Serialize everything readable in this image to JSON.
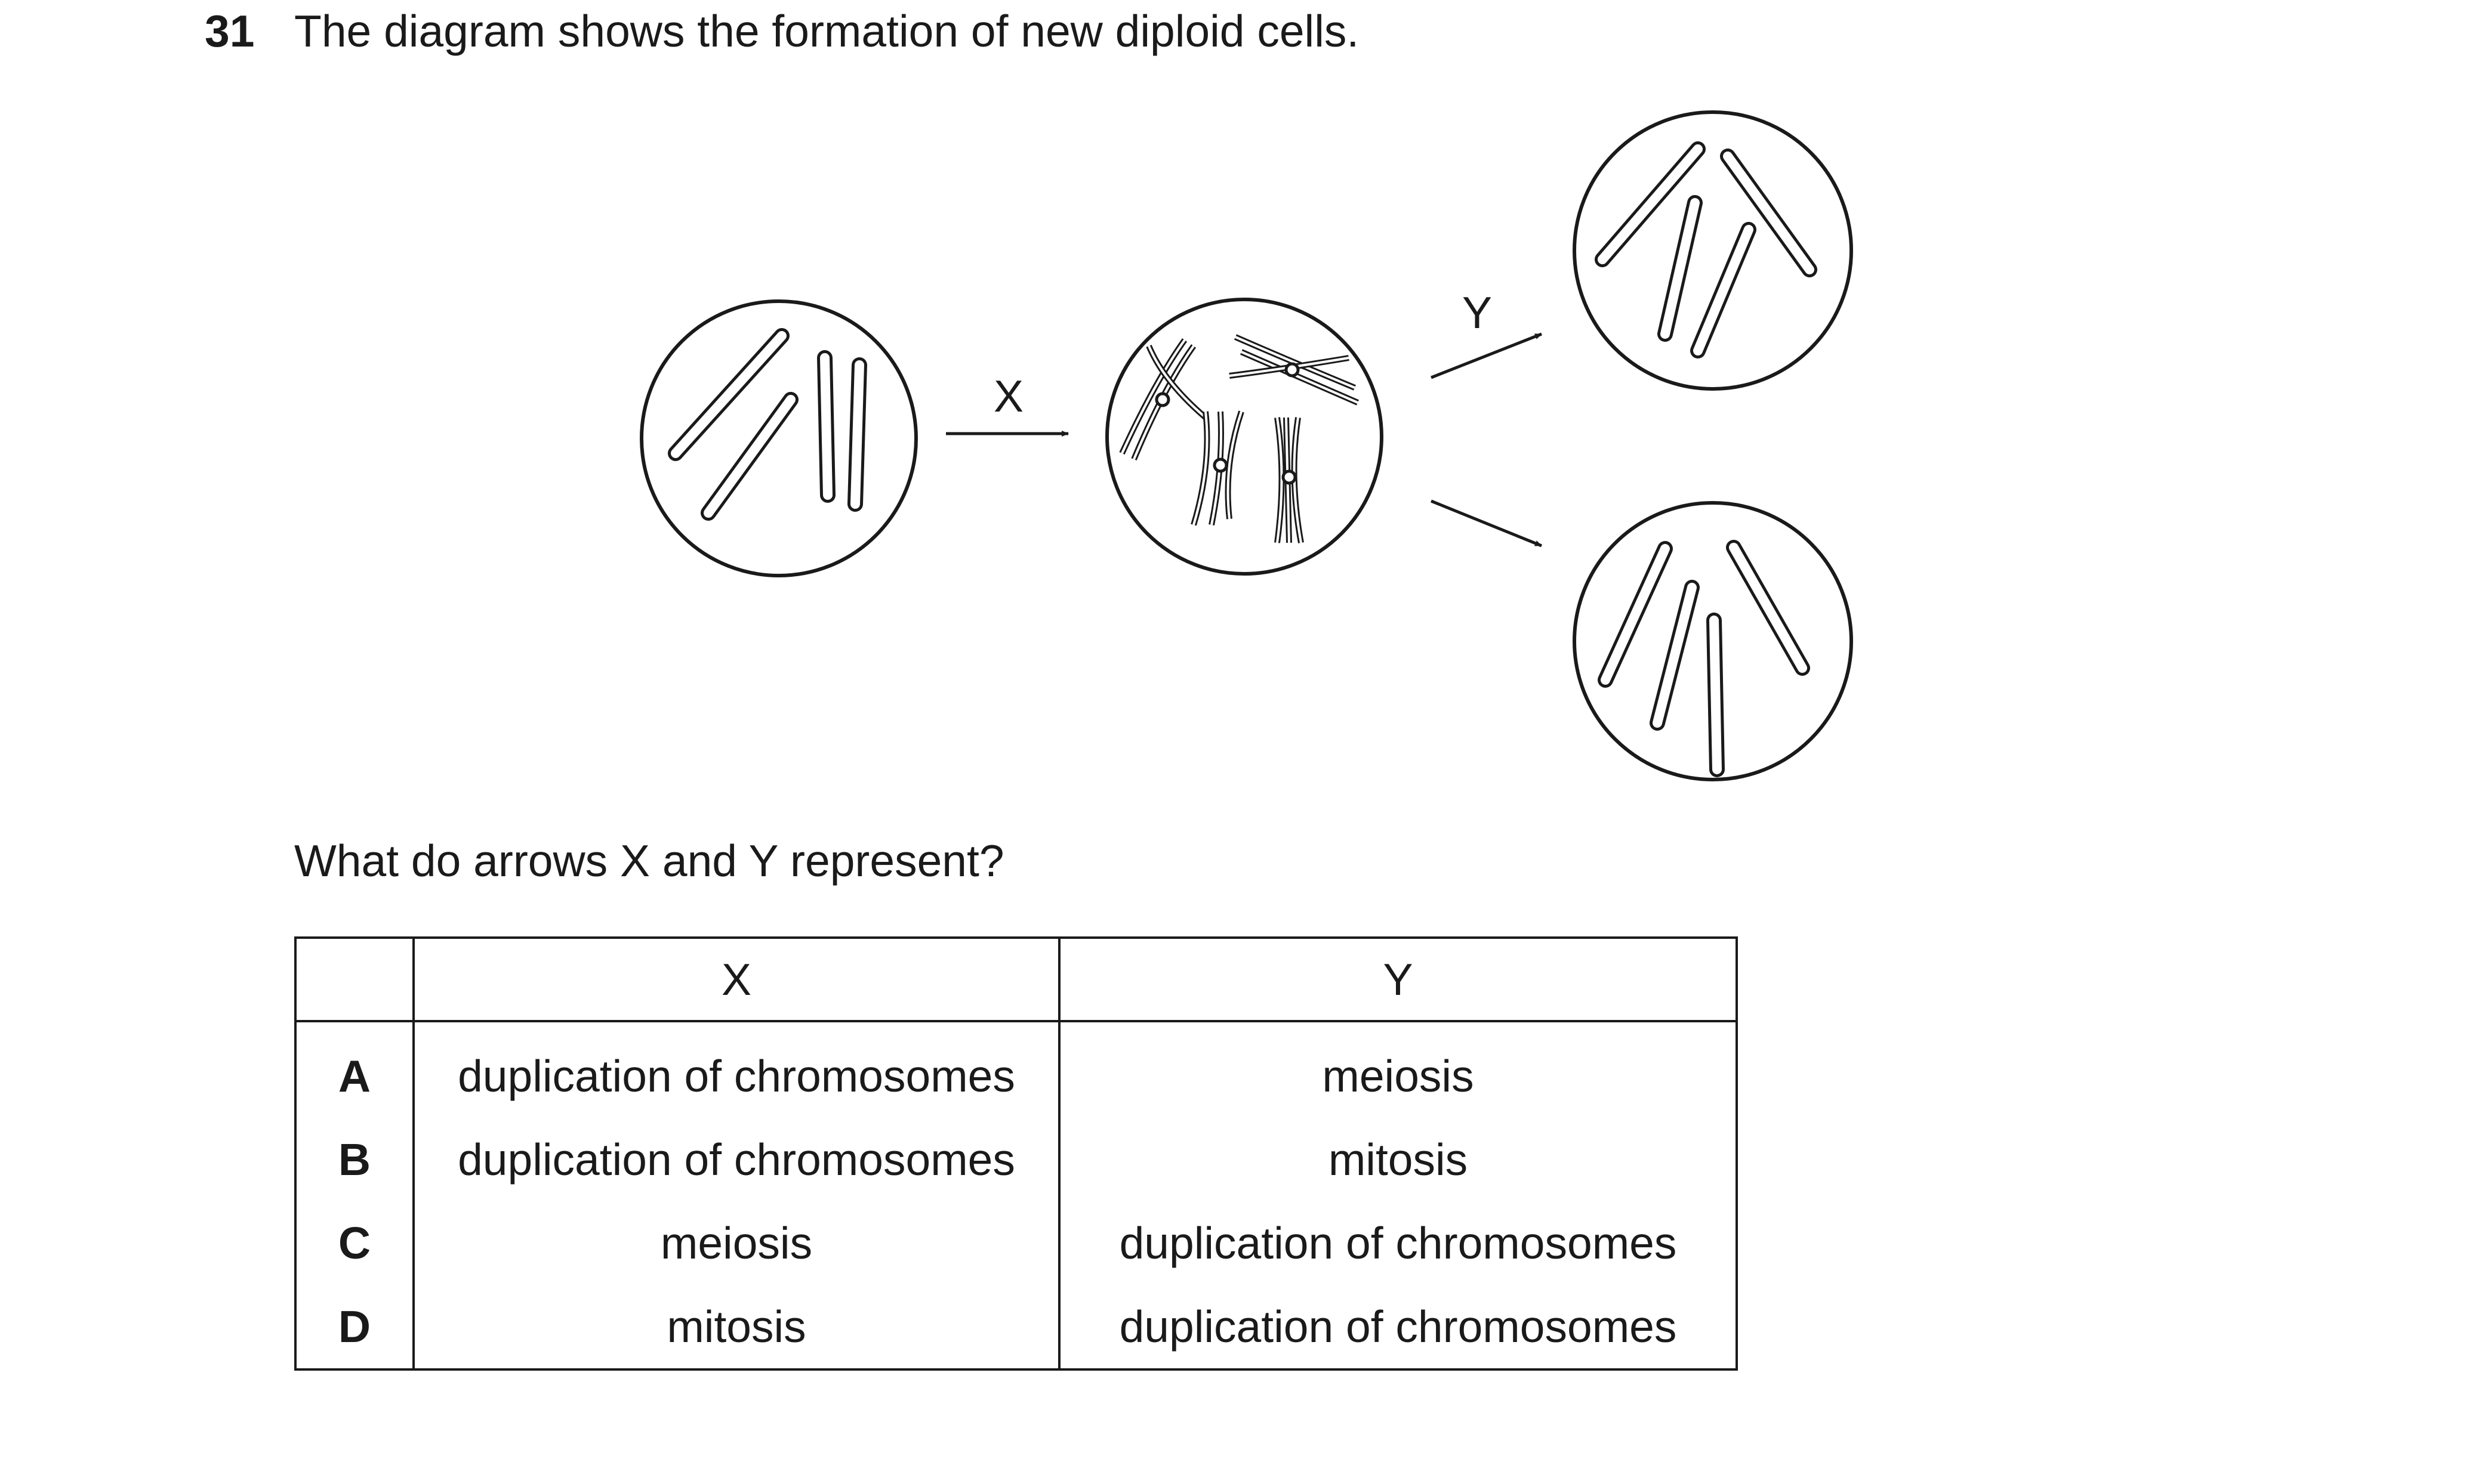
{
  "question": {
    "number": "31",
    "text": "The diagram shows the formation of new diploid cells.",
    "prompt": "What do arrows X and Y represent?"
  },
  "diagram": {
    "arrow_x_label": "X",
    "arrow_y_label": "Y"
  },
  "table": {
    "headers": [
      "",
      "X",
      "Y"
    ],
    "rows": [
      {
        "option": "A",
        "x": "duplication of chromosomes",
        "y": "meiosis"
      },
      {
        "option": "B",
        "x": "duplication of chromosomes",
        "y": "mitosis"
      },
      {
        "option": "C",
        "x": "meiosis",
        "y": "duplication of chromosomes"
      },
      {
        "option": "D",
        "x": "mitosis",
        "y": "duplication of chromosomes"
      }
    ]
  }
}
